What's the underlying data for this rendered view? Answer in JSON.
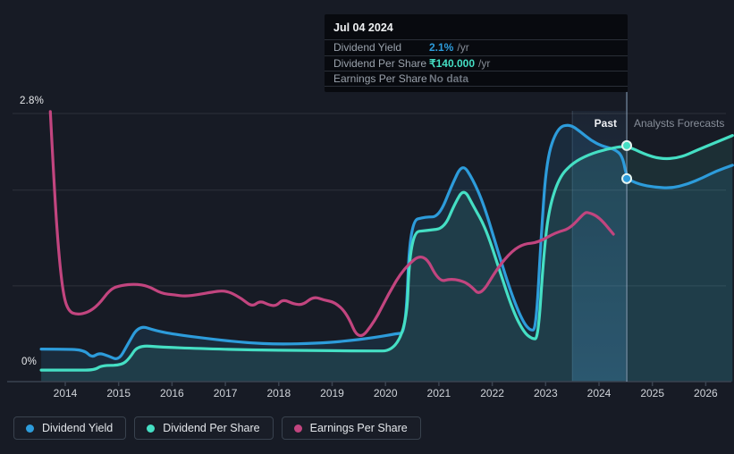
{
  "labels": {
    "y_top": "2.8%",
    "y_bottom": "0%",
    "past": "Past",
    "forecast": "Analysts Forecasts"
  },
  "tooltip": {
    "date": "Jul 04 2024",
    "rows": [
      {
        "label": "Dividend Yield",
        "value": "2.1%",
        "suffix": "/yr",
        "color": "#2D9CDB"
      },
      {
        "label": "Dividend Per Share",
        "value": "₹140.000",
        "suffix": "/yr",
        "color": "#45DFC4"
      },
      {
        "label": "Earnings Per Share",
        "value": "No data",
        "suffix": "",
        "color": "#6D747E"
      }
    ]
  },
  "legend": {
    "items": [
      {
        "label": "Dividend Yield",
        "color": "#2D9CDB"
      },
      {
        "label": "Dividend Per Share",
        "color": "#45DFC4"
      },
      {
        "label": "Earnings Per Share",
        "color": "#C2457F"
      }
    ]
  },
  "colors": {
    "background": "#171B25",
    "grid": "rgba(255,255,255,0.10)",
    "axis": "#3A4350",
    "band": "#4D8CC8",
    "hover_line": "rgba(165,195,225,0.55)",
    "blue": "#2D9CDB",
    "teal": "#45DFC4",
    "pink": "#C2457F"
  },
  "chart_data": {
    "type": "line",
    "title": "Dividend history and forecast",
    "x_axis": {
      "labels": [
        "2014",
        "2015",
        "2016",
        "2017",
        "2018",
        "2019",
        "2020",
        "2021",
        "2022",
        "2023",
        "2024",
        "2025",
        "2026"
      ],
      "years": [
        2014,
        2015,
        2016,
        2017,
        2018,
        2019,
        2020,
        2021,
        2022,
        2023,
        2024,
        2025,
        2026
      ],
      "range": [
        2013.0,
        2026.55
      ]
    },
    "y_axis": {
      "tick_labels": [
        "0%",
        "2.8%"
      ],
      "range_pct": [
        0,
        2.8
      ],
      "gridlines_pct": [
        1.0,
        2.0,
        2.8
      ],
      "grid": true
    },
    "past_band": {
      "from_year": 2023.5,
      "to_year": 2024.5
    },
    "cursor": {
      "date": "Jul 04 2024",
      "year": 2024.52
    },
    "legend_position": "bottom-left",
    "series": [
      {
        "name": "Dividend Yield",
        "color": "#2D9CDB",
        "unit": "percent",
        "fill": "rgba(45,156,219,0.13)",
        "marker": {
          "year": 2024.52,
          "value": 2.12,
          "display": "2.1% /yr"
        },
        "points": [
          [
            2013.55,
            0.34
          ],
          [
            2014.0,
            0.34
          ],
          [
            2014.35,
            0.33
          ],
          [
            2014.5,
            0.25
          ],
          [
            2014.63,
            0.3
          ],
          [
            2014.8,
            0.27
          ],
          [
            2015.0,
            0.22
          ],
          [
            2015.16,
            0.38
          ],
          [
            2015.38,
            0.59
          ],
          [
            2015.7,
            0.53
          ],
          [
            2016.1,
            0.49
          ],
          [
            2016.8,
            0.44
          ],
          [
            2017.4,
            0.405
          ],
          [
            2018.0,
            0.39
          ],
          [
            2018.7,
            0.4
          ],
          [
            2019.2,
            0.42
          ],
          [
            2019.8,
            0.46
          ],
          [
            2020.2,
            0.5
          ],
          [
            2020.38,
            0.51
          ],
          [
            2020.46,
            1.68
          ],
          [
            2020.75,
            1.72
          ],
          [
            2021.0,
            1.72
          ],
          [
            2021.25,
            2.06
          ],
          [
            2021.44,
            2.28
          ],
          [
            2021.63,
            2.12
          ],
          [
            2021.85,
            1.84
          ],
          [
            2022.1,
            1.37
          ],
          [
            2022.38,
            0.88
          ],
          [
            2022.58,
            0.62
          ],
          [
            2022.72,
            0.53
          ],
          [
            2022.82,
            0.55
          ],
          [
            2022.92,
            1.55
          ],
          [
            2023.02,
            2.33
          ],
          [
            2023.22,
            2.65
          ],
          [
            2023.45,
            2.69
          ],
          [
            2023.65,
            2.61
          ],
          [
            2023.85,
            2.52
          ],
          [
            2024.05,
            2.46
          ],
          [
            2024.28,
            2.43
          ],
          [
            2024.44,
            2.36
          ],
          [
            2024.52,
            2.12
          ],
          [
            2024.75,
            2.06
          ],
          [
            2025.05,
            2.03
          ],
          [
            2025.35,
            2.02
          ],
          [
            2025.65,
            2.06
          ],
          [
            2025.95,
            2.13
          ],
          [
            2026.2,
            2.2
          ],
          [
            2026.5,
            2.26
          ]
        ]
      },
      {
        "name": "Dividend Per Share",
        "color": "#45DFC4",
        "unit": "rupees-scaled-to-percent-axis",
        "fill": "rgba(74,223,196,0.10)",
        "marker": {
          "year": 2024.52,
          "value": 2.465,
          "display": "₹140.000 /yr"
        },
        "points": [
          [
            2013.55,
            0.12
          ],
          [
            2014.2,
            0.12
          ],
          [
            2014.55,
            0.12
          ],
          [
            2014.68,
            0.17
          ],
          [
            2015.05,
            0.17
          ],
          [
            2015.2,
            0.24
          ],
          [
            2015.36,
            0.38
          ],
          [
            2015.8,
            0.36
          ],
          [
            2016.5,
            0.345
          ],
          [
            2017.5,
            0.33
          ],
          [
            2018.5,
            0.325
          ],
          [
            2019.5,
            0.32
          ],
          [
            2020.38,
            0.32
          ],
          [
            2020.46,
            1.56
          ],
          [
            2020.8,
            1.58
          ],
          [
            2021.1,
            1.6
          ],
          [
            2021.3,
            1.86
          ],
          [
            2021.47,
            2.02
          ],
          [
            2021.65,
            1.83
          ],
          [
            2021.88,
            1.6
          ],
          [
            2022.12,
            1.19
          ],
          [
            2022.4,
            0.72
          ],
          [
            2022.6,
            0.51
          ],
          [
            2022.75,
            0.445
          ],
          [
            2022.86,
            0.45
          ],
          [
            2022.96,
            1.3
          ],
          [
            2023.06,
            1.8
          ],
          [
            2023.25,
            2.13
          ],
          [
            2023.5,
            2.28
          ],
          [
            2023.8,
            2.37
          ],
          [
            2024.15,
            2.43
          ],
          [
            2024.52,
            2.465
          ],
          [
            2024.85,
            2.375
          ],
          [
            2025.15,
            2.325
          ],
          [
            2025.5,
            2.335
          ],
          [
            2025.85,
            2.42
          ],
          [
            2026.2,
            2.5
          ],
          [
            2026.5,
            2.57
          ]
        ]
      },
      {
        "name": "Earnings Per Share",
        "color": "#C2457F",
        "unit": "scaled-to-percent-axis",
        "fill": null,
        "value_at_cursor": "No data",
        "points": [
          [
            2013.72,
            2.82
          ],
          [
            2013.79,
            2.05
          ],
          [
            2013.88,
            1.32
          ],
          [
            2013.97,
            0.88
          ],
          [
            2014.07,
            0.73
          ],
          [
            2014.22,
            0.7
          ],
          [
            2014.42,
            0.72
          ],
          [
            2014.62,
            0.8
          ],
          [
            2014.85,
            0.97
          ],
          [
            2015.05,
            1.005
          ],
          [
            2015.3,
            1.02
          ],
          [
            2015.55,
            1.0
          ],
          [
            2015.8,
            0.92
          ],
          [
            2016.05,
            0.905
          ],
          [
            2016.25,
            0.89
          ],
          [
            2016.5,
            0.91
          ],
          [
            2016.75,
            0.935
          ],
          [
            2016.95,
            0.95
          ],
          [
            2017.1,
            0.93
          ],
          [
            2017.3,
            0.87
          ],
          [
            2017.5,
            0.78
          ],
          [
            2017.65,
            0.845
          ],
          [
            2017.82,
            0.8
          ],
          [
            2017.95,
            0.79
          ],
          [
            2018.08,
            0.86
          ],
          [
            2018.28,
            0.81
          ],
          [
            2018.45,
            0.8
          ],
          [
            2018.65,
            0.89
          ],
          [
            2018.85,
            0.85
          ],
          [
            2019.05,
            0.83
          ],
          [
            2019.28,
            0.71
          ],
          [
            2019.5,
            0.42
          ],
          [
            2019.8,
            0.63
          ],
          [
            2020.05,
            0.91
          ],
          [
            2020.35,
            1.19
          ],
          [
            2020.72,
            1.355
          ],
          [
            2021.0,
            1.04
          ],
          [
            2021.22,
            1.075
          ],
          [
            2021.45,
            1.05
          ],
          [
            2021.6,
            1.0
          ],
          [
            2021.78,
            0.89
          ],
          [
            2022.1,
            1.19
          ],
          [
            2022.38,
            1.37
          ],
          [
            2022.6,
            1.44
          ],
          [
            2022.85,
            1.45
          ],
          [
            2023.2,
            1.56
          ],
          [
            2023.45,
            1.595
          ],
          [
            2023.72,
            1.76
          ],
          [
            2023.79,
            1.77
          ],
          [
            2024.0,
            1.72
          ],
          [
            2024.27,
            1.54
          ]
        ]
      }
    ]
  }
}
